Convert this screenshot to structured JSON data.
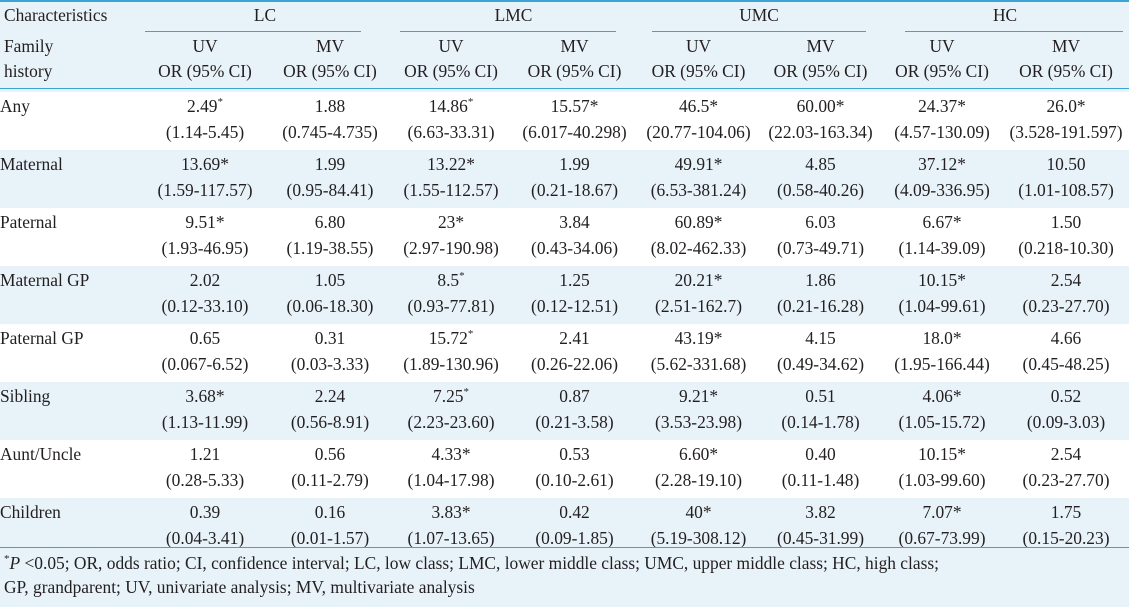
{
  "headers": {
    "characteristics": "Characteristics",
    "family_history_line1": "Family",
    "family_history_line2": "history",
    "groups": [
      "LC",
      "LMC",
      "UMC",
      "HC"
    ],
    "sub_top": [
      "UV",
      "MV",
      "UV",
      "MV",
      "UV",
      "MV",
      "UV",
      "MV"
    ],
    "sub_bottom": "OR (95% CI)"
  },
  "rows": [
    {
      "label": "Any",
      "cells": [
        {
          "or": "2.49",
          "sup": "*",
          "ci": "(1.14-5.45)"
        },
        {
          "or": "1.88",
          "sup": "",
          "ci": "(0.745-4.735)"
        },
        {
          "or": "14.86",
          "sup": "*",
          "ci": "(6.63-33.31)"
        },
        {
          "or": "15.57*",
          "sup": "",
          "ci": "(6.017-40.298)"
        },
        {
          "or": "46.5*",
          "sup": "",
          "ci": "(20.77-104.06)"
        },
        {
          "or": "60.00*",
          "sup": "",
          "ci": "(22.03-163.34)"
        },
        {
          "or": "24.37*",
          "sup": "",
          "ci": "(4.57-130.09)"
        },
        {
          "or": "26.0*",
          "sup": "",
          "ci": "(3.528-191.597)"
        }
      ]
    },
    {
      "label": "Maternal",
      "cells": [
        {
          "or": "13.69*",
          "sup": "",
          "ci": "(1.59-117.57)"
        },
        {
          "or": "1.99",
          "sup": "",
          "ci": "(0.95-84.41)"
        },
        {
          "or": "13.22*",
          "sup": "",
          "ci": "(1.55-112.57)"
        },
        {
          "or": "1.99",
          "sup": "",
          "ci": "(0.21-18.67)"
        },
        {
          "or": "49.91*",
          "sup": "",
          "ci": "(6.53-381.24)"
        },
        {
          "or": "4.85",
          "sup": "",
          "ci": "(0.58-40.26)"
        },
        {
          "or": "37.12*",
          "sup": "",
          "ci": "(4.09-336.95)"
        },
        {
          "or": "10.50",
          "sup": "",
          "ci": "(1.01-108.57)"
        }
      ]
    },
    {
      "label": "Paternal",
      "cells": [
        {
          "or": "9.51*",
          "sup": "",
          "ci": "(1.93-46.95)"
        },
        {
          "or": "6.80",
          "sup": "",
          "ci": "(1.19-38.55)"
        },
        {
          "or": "23*",
          "sup": "",
          "ci": "(2.97-190.98)"
        },
        {
          "or": "3.84",
          "sup": "",
          "ci": "(0.43-34.06)"
        },
        {
          "or": "60.89*",
          "sup": "",
          "ci": "(8.02-462.33)"
        },
        {
          "or": "6.03",
          "sup": "",
          "ci": "(0.73-49.71)"
        },
        {
          "or": "6.67*",
          "sup": "",
          "ci": "(1.14-39.09)"
        },
        {
          "or": "1.50",
          "sup": "",
          "ci": "(0.218-10.30)"
        }
      ]
    },
    {
      "label": "Maternal GP",
      "cells": [
        {
          "or": "2.02",
          "sup": "",
          "ci": "(0.12-33.10)"
        },
        {
          "or": "1.05",
          "sup": "",
          "ci": "(0.06-18.30)"
        },
        {
          "or": "8.5",
          "sup": "*",
          "ci": "(0.93-77.81)"
        },
        {
          "or": "1.25",
          "sup": "",
          "ci": "(0.12-12.51)"
        },
        {
          "or": "20.21*",
          "sup": "",
          "ci": "(2.51-162.7)"
        },
        {
          "or": "1.86",
          "sup": "",
          "ci": "(0.21-16.28)"
        },
        {
          "or": "10.15*",
          "sup": "",
          "ci": "(1.04-99.61)"
        },
        {
          "or": "2.54",
          "sup": "",
          "ci": "(0.23-27.70)"
        }
      ]
    },
    {
      "label": "Paternal GP",
      "cells": [
        {
          "or": "0.65",
          "sup": "",
          "ci": "(0.067-6.52)"
        },
        {
          "or": "0.31",
          "sup": "",
          "ci": "(0.03-3.33)"
        },
        {
          "or": "15.72",
          "sup": "*",
          "ci": "(1.89-130.96)"
        },
        {
          "or": "2.41",
          "sup": "",
          "ci": "(0.26-22.06)"
        },
        {
          "or": "43.19*",
          "sup": "",
          "ci": "(5.62-331.68)"
        },
        {
          "or": "4.15",
          "sup": "",
          "ci": "(0.49-34.62)"
        },
        {
          "or": "18.0*",
          "sup": "",
          "ci": "(1.95-166.44)"
        },
        {
          "or": "4.66",
          "sup": "",
          "ci": "(0.45-48.25)"
        }
      ]
    },
    {
      "label": "Sibling",
      "cells": [
        {
          "or": "3.68*",
          "sup": "",
          "ci": "(1.13-11.99)"
        },
        {
          "or": "2.24",
          "sup": "",
          "ci": "(0.56-8.91)"
        },
        {
          "or": "7.25",
          "sup": "*",
          "ci": "(2.23-23.60)"
        },
        {
          "or": "0.87",
          "sup": "",
          "ci": "(0.21-3.58)"
        },
        {
          "or": "9.21*",
          "sup": "",
          "ci": "(3.53-23.98)"
        },
        {
          "or": "0.51",
          "sup": "",
          "ci": "(0.14-1.78)"
        },
        {
          "or": "4.06*",
          "sup": "",
          "ci": "(1.05-15.72)"
        },
        {
          "or": "0.52",
          "sup": "",
          "ci": "(0.09-3.03)"
        }
      ]
    },
    {
      "label": "Aunt/Uncle",
      "cells": [
        {
          "or": "1.21",
          "sup": "",
          "ci": "(0.28-5.33)"
        },
        {
          "or": "0.56",
          "sup": "",
          "ci": "(0.11-2.79)"
        },
        {
          "or": "4.33*",
          "sup": "",
          "ci": "(1.04-17.98)"
        },
        {
          "or": "0.53",
          "sup": "",
          "ci": "(0.10-2.61)"
        },
        {
          "or": "6.60*",
          "sup": "",
          "ci": "(2.28-19.10)"
        },
        {
          "or": "0.40",
          "sup": "",
          "ci": "(0.11-1.48)"
        },
        {
          "or": "10.15*",
          "sup": "",
          "ci": "(1.03-99.60)"
        },
        {
          "or": "2.54",
          "sup": "",
          "ci": "(0.23-27.70)"
        }
      ]
    },
    {
      "label": "Children",
      "cells": [
        {
          "or": "0.39",
          "sup": "",
          "ci": "(0.04-3.41)"
        },
        {
          "or": "0.16",
          "sup": "",
          "ci": "(0.01-1.57)"
        },
        {
          "or": "3.83*",
          "sup": "",
          "ci": "(1.07-13.65)"
        },
        {
          "or": "0.42",
          "sup": "",
          "ci": "(0.09-1.85)"
        },
        {
          "or": "40*",
          "sup": "",
          "ci": "(5.19-308.12)"
        },
        {
          "or": "3.82",
          "sup": "",
          "ci": "(0.45-31.99)"
        },
        {
          "or": "7.07*",
          "sup": "",
          "ci": "(0.67-73.99)"
        },
        {
          "or": "1.75",
          "sup": "",
          "ci": "(0.15-20.23)"
        }
      ]
    }
  ],
  "footnote": {
    "sup": "*",
    "italic_p": "P",
    "text_line1": " <0.05; OR, odds ratio; CI, confidence interval; LC, low class; LMC, lower middle class; UMC, upper middle class; HC, high class;",
    "text_line2": "GP, grandparent; UV, univariate analysis; MV, multivariate analysis"
  },
  "colors": {
    "rule": "#3aa5d4",
    "band": "#e8f3f9",
    "text": "#231f20"
  }
}
